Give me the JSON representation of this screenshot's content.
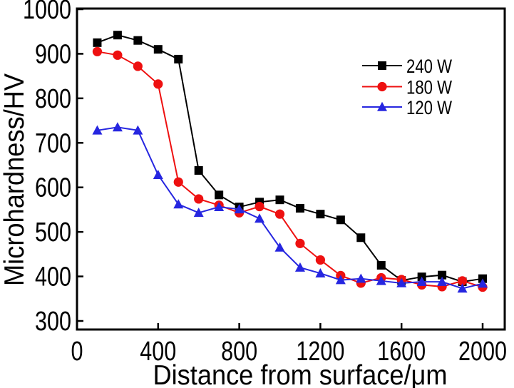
{
  "chart_data": {
    "type": "line",
    "title": "",
    "xlabel": "Distance from surface/μm",
    "ylabel": "Microhardness/HV",
    "x": [
      100,
      200,
      300,
      400,
      500,
      600,
      700,
      800,
      900,
      1000,
      1100,
      1200,
      1300,
      1400,
      1500,
      1600,
      1700,
      1800,
      1900,
      2000
    ],
    "series": [
      {
        "name": "240 W",
        "marker": "square",
        "color": "#000000",
        "values": [
          925,
          942,
          930,
          910,
          888,
          638,
          583,
          556,
          567,
          572,
          553,
          540,
          527,
          487,
          425,
          391,
          399,
          403,
          388,
          395
        ]
      },
      {
        "name": "180 W",
        "marker": "circle",
        "color": "#ee1010",
        "values": [
          905,
          897,
          872,
          832,
          612,
          574,
          560,
          543,
          557,
          540,
          474,
          437,
          402,
          385,
          397,
          393,
          381,
          377,
          390,
          376
        ]
      },
      {
        "name": "120 W",
        "marker": "triangle",
        "color": "#2626e0",
        "values": [
          728,
          735,
          728,
          628,
          562,
          543,
          556,
          551,
          530,
          465,
          420,
          407,
          392,
          395,
          390,
          385,
          388,
          388,
          373,
          384
        ]
      }
    ],
    "x_ticks": [
      0,
      400,
      800,
      1200,
      1600,
      2000
    ],
    "y_ticks": [
      300,
      400,
      500,
      600,
      700,
      800,
      900,
      1000
    ],
    "xlim": [
      0,
      2110
    ],
    "ylim": [
      281,
      1002
    ],
    "grid": false,
    "legend_position": "upper right"
  },
  "colors": {
    "axis": "#000000",
    "background": "#ffffff"
  }
}
